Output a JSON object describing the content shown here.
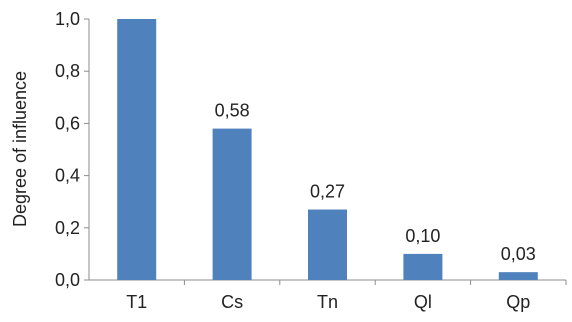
{
  "chart_data": {
    "type": "bar",
    "categories": [
      "T1",
      "Cs",
      "Tn",
      "Ql",
      "Qp"
    ],
    "values": [
      1.0,
      0.58,
      0.27,
      0.1,
      0.03
    ],
    "data_labels": [
      "",
      "0,58",
      "0,27",
      "0,10",
      "0,03"
    ],
    "y_tick_labels": [
      "0,0",
      "0,2",
      "0,4",
      "0,6",
      "0,8",
      "1,0"
    ],
    "y_ticks": [
      0.0,
      0.2,
      0.4,
      0.6,
      0.8,
      1.0
    ],
    "ylim": [
      0,
      1.0
    ],
    "title": "",
    "xlabel": "",
    "ylabel": "Degree of influence",
    "grid": false,
    "legend": "none",
    "bar_color": "#4f81bd"
  }
}
